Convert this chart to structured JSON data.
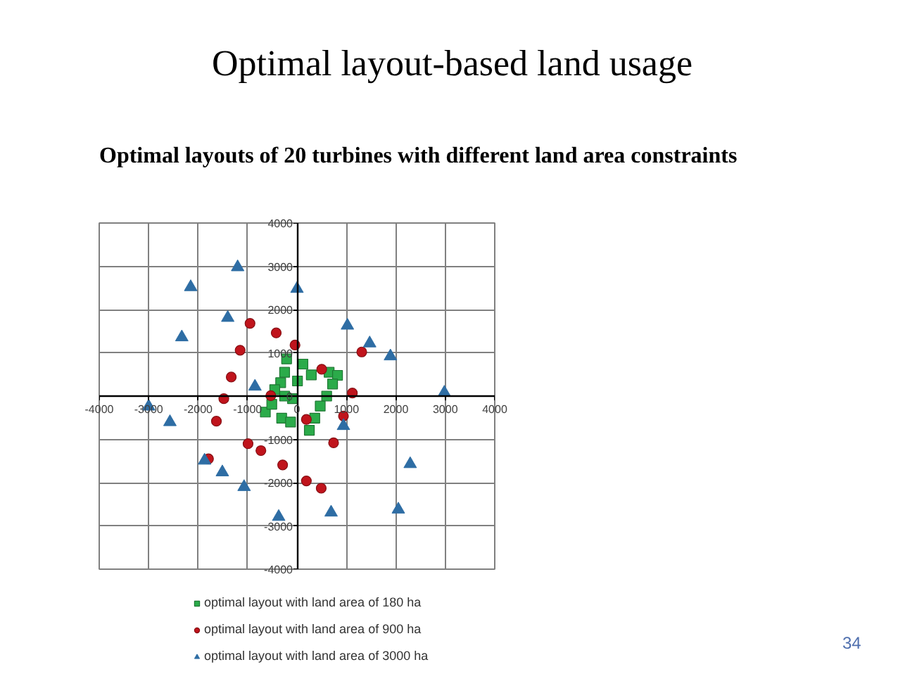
{
  "chart_data": {
    "type": "scatter",
    "title": "Optimal layout-based land usage",
    "subtitle": "Optimal layouts of 20 turbines with different land area constraints",
    "xlim": [
      -4000,
      4000
    ],
    "ylim": [
      -4000,
      4000
    ],
    "xticks": [
      -4000,
      -3000,
      -2000,
      -1000,
      0,
      1000,
      2000,
      3000,
      4000
    ],
    "yticks": [
      -4000,
      -3000,
      -2000,
      -1000,
      0,
      1000,
      2000,
      3000,
      4000
    ],
    "grid": true,
    "legend": "bottom",
    "series": [
      {
        "name": "optimal layout with land area of 180 ha",
        "color": "#2bab4a",
        "marker": "square",
        "x": [
          -210,
          120,
          -250,
          10,
          290,
          650,
          820,
          720,
          -330,
          -450,
          600,
          470,
          360,
          250,
          -90,
          -640,
          -310,
          -130,
          -510,
          -250
        ],
        "values": [
          860,
          740,
          550,
          350,
          490,
          550,
          480,
          280,
          310,
          150,
          0,
          -230,
          -510,
          -790,
          -60,
          -370,
          -510,
          -600,
          -190,
          0
        ]
      },
      {
        "name": "optimal layout with land area of 900 ha",
        "color": "#c0141c",
        "marker": "circle",
        "x": [
          -950,
          -420,
          -1150,
          -40,
          -1330,
          1310,
          500,
          1120,
          190,
          940,
          740,
          190,
          490,
          -1480,
          -530,
          -1630,
          -990,
          -730,
          -290,
          -1790
        ],
        "values": [
          1680,
          1460,
          1060,
          1180,
          440,
          1020,
          620,
          70,
          -540,
          -460,
          -1080,
          -1960,
          -2130,
          -60,
          10,
          -580,
          -1100,
          -1260,
          -1590,
          -1450
        ]
      },
      {
        "name": "optimal layout with land area of 3000 ha",
        "color": "#2e6da4",
        "marker": "triangle",
        "x": [
          -2150,
          -1200,
          -1400,
          -2330,
          0,
          1020,
          1470,
          1890,
          2980,
          940,
          2290,
          2050,
          690,
          -370,
          -1070,
          -1510,
          -1870,
          -2570,
          -3000,
          -850
        ],
        "values": [
          2520,
          2980,
          1810,
          1360,
          2480,
          1630,
          1220,
          920,
          80,
          -690,
          -1570,
          -2620,
          -2690,
          -2790,
          -2100,
          -1760,
          -1490,
          -600,
          -240,
          220
        ]
      }
    ],
    "annotations": [
      "34"
    ]
  }
}
